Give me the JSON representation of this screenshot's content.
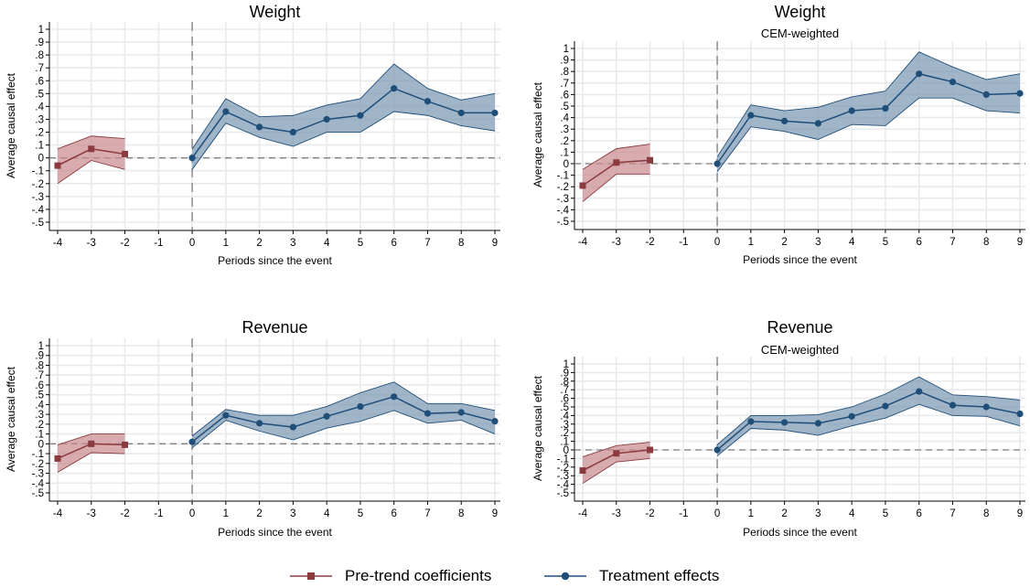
{
  "chart_data": [
    {
      "type": "line",
      "title": "Weight",
      "subtitle": "",
      "xlabel": "Periods since the event",
      "ylabel": "Average causal effect",
      "xlim": [
        -4,
        9
      ],
      "ylim": [
        -0.5,
        1
      ],
      "xticks": [
        "-4",
        "-3",
        "-2",
        "-1",
        "0",
        "1",
        "2",
        "3",
        "4",
        "5",
        "6",
        "7",
        "8",
        "9"
      ],
      "yticks": [
        "-.5",
        "-.4",
        "-.3",
        "-.2",
        "-.1",
        "0",
        ".1",
        ".2",
        ".3",
        ".4",
        ".5",
        ".6",
        ".7",
        ".8",
        ".9",
        "1"
      ],
      "event_line_x": 0,
      "grid": true,
      "series": [
        {
          "name": "Pre-trend coefficients",
          "x": [
            -4,
            -3,
            -2
          ],
          "values": [
            -0.06,
            0.07,
            0.03
          ],
          "ci_lower": [
            -0.2,
            -0.02,
            -0.09
          ],
          "ci_upper": [
            0.07,
            0.17,
            0.15
          ]
        },
        {
          "name": "Treatment effects",
          "x": [
            0,
            1,
            2,
            3,
            4,
            5,
            6,
            7,
            8,
            9
          ],
          "values": [
            0.0,
            0.36,
            0.24,
            0.2,
            0.3,
            0.33,
            0.54,
            0.44,
            0.35,
            0.35
          ],
          "ci_lower": [
            -0.09,
            0.27,
            0.16,
            0.09,
            0.2,
            0.2,
            0.36,
            0.33,
            0.25,
            0.21
          ],
          "ci_upper": [
            0.07,
            0.46,
            0.32,
            0.33,
            0.41,
            0.46,
            0.73,
            0.54,
            0.45,
            0.5
          ]
        }
      ]
    },
    {
      "type": "line",
      "title": "Weight",
      "subtitle": "CEM-weighted",
      "xlabel": "Periods since the event",
      "ylabel": "Average causal effect",
      "xlim": [
        -4,
        9
      ],
      "ylim": [
        -0.5,
        1
      ],
      "xticks": [
        "-4",
        "-3",
        "-2",
        "-1",
        "0",
        "1",
        "2",
        "3",
        "4",
        "5",
        "6",
        "7",
        "8",
        "9"
      ],
      "yticks": [
        "-.5",
        "-.4",
        "-.3",
        "-.2",
        "-.1",
        "0",
        ".1",
        ".2",
        ".3",
        ".4",
        ".5",
        ".6",
        ".7",
        ".8",
        ".9",
        "1"
      ],
      "event_line_x": 0,
      "grid": true,
      "series": [
        {
          "name": "Pre-trend coefficients",
          "x": [
            -4,
            -3,
            -2
          ],
          "values": [
            -0.19,
            0.01,
            0.03
          ],
          "ci_lower": [
            -0.33,
            -0.09,
            -0.09
          ],
          "ci_upper": [
            -0.05,
            0.13,
            0.17
          ]
        },
        {
          "name": "Treatment effects",
          "x": [
            0,
            1,
            2,
            3,
            4,
            5,
            6,
            7,
            8,
            9
          ],
          "values": [
            0.0,
            0.42,
            0.37,
            0.35,
            0.46,
            0.48,
            0.78,
            0.71,
            0.6,
            0.61
          ],
          "ci_lower": [
            -0.07,
            0.32,
            0.28,
            0.21,
            0.34,
            0.33,
            0.57,
            0.57,
            0.46,
            0.44
          ],
          "ci_upper": [
            0.06,
            0.51,
            0.46,
            0.49,
            0.58,
            0.63,
            0.97,
            0.84,
            0.73,
            0.78
          ]
        }
      ]
    },
    {
      "type": "line",
      "title": "Revenue",
      "subtitle": "",
      "xlabel": "Periods since the event",
      "ylabel": "Average causal effect",
      "xlim": [
        -4,
        9
      ],
      "ylim": [
        -0.5,
        1
      ],
      "xticks": [
        "-4",
        "-3",
        "-2",
        "-1",
        "0",
        "1",
        "2",
        "3",
        "4",
        "5",
        "6",
        "7",
        "8",
        "9"
      ],
      "yticks": [
        "-.5",
        "-.4",
        "-.3",
        "-.2",
        "-.1",
        "0",
        ".1",
        ".2",
        ".3",
        ".4",
        ".5",
        ".6",
        ".7",
        ".8",
        ".9",
        "1"
      ],
      "event_line_x": 0,
      "grid": true,
      "series": [
        {
          "name": "Pre-trend coefficients",
          "x": [
            -4,
            -3,
            -2
          ],
          "values": [
            -0.15,
            0.0,
            -0.01
          ],
          "ci_lower": [
            -0.29,
            -0.09,
            -0.1
          ],
          "ci_upper": [
            -0.01,
            0.1,
            0.1
          ]
        },
        {
          "name": "Treatment effects",
          "x": [
            0,
            1,
            2,
            3,
            4,
            5,
            6,
            7,
            8,
            9
          ],
          "values": [
            0.02,
            0.29,
            0.21,
            0.17,
            0.28,
            0.38,
            0.48,
            0.31,
            0.32,
            0.23
          ],
          "ci_lower": [
            -0.04,
            0.24,
            0.13,
            0.04,
            0.16,
            0.23,
            0.34,
            0.21,
            0.24,
            0.1
          ],
          "ci_upper": [
            0.08,
            0.35,
            0.29,
            0.29,
            0.38,
            0.52,
            0.63,
            0.41,
            0.41,
            0.34
          ]
        }
      ]
    },
    {
      "type": "line",
      "title": "Revenue",
      "subtitle": "CEM-weighted",
      "xlabel": "Periods since the event",
      "ylabel": "Average causal effect",
      "xlim": [
        -4,
        9
      ],
      "ylim": [
        -0.5,
        1
      ],
      "xticks": [
        "-4",
        "-3",
        "-2",
        "-1",
        "0",
        "1",
        "2",
        "3",
        "4",
        "5",
        "6",
        "7",
        "8",
        "9"
      ],
      "yticks": [
        "-.5",
        "-.4",
        "-.3",
        "-.2",
        "-.1",
        "0",
        ".1",
        ".2",
        ".3",
        ".4",
        ".5",
        ".6",
        ".7",
        ".8",
        ".9",
        "1"
      ],
      "event_line_x": 0,
      "grid": true,
      "series": [
        {
          "name": "Pre-trend coefficients",
          "x": [
            -4,
            -3,
            -2
          ],
          "values": [
            -0.24,
            -0.04,
            0.0
          ],
          "ci_lower": [
            -0.39,
            -0.14,
            -0.1
          ],
          "ci_upper": [
            -0.08,
            0.05,
            0.09
          ]
        },
        {
          "name": "Treatment effects",
          "x": [
            0,
            1,
            2,
            3,
            4,
            5,
            6,
            7,
            8,
            9
          ],
          "values": [
            0.0,
            0.33,
            0.32,
            0.31,
            0.39,
            0.51,
            0.68,
            0.52,
            0.5,
            0.42
          ],
          "ci_lower": [
            -0.07,
            0.25,
            0.23,
            0.17,
            0.28,
            0.37,
            0.53,
            0.4,
            0.39,
            0.28
          ],
          "ci_upper": [
            0.06,
            0.4,
            0.4,
            0.41,
            0.5,
            0.65,
            0.85,
            0.64,
            0.62,
            0.58
          ]
        }
      ]
    }
  ],
  "legend": {
    "pretrend": {
      "label": "Pre-trend coefficients",
      "color": "#8b3a3e",
      "fill": "#c98b8f"
    },
    "treatment": {
      "label": "Treatment effects",
      "color": "#1f4e79",
      "fill": "#7d98b3"
    }
  },
  "colors": {
    "grid": "#e9eaee",
    "zero_line": "#7f7f7f",
    "event_line": "#7f7f7f",
    "axis": "#000000"
  }
}
